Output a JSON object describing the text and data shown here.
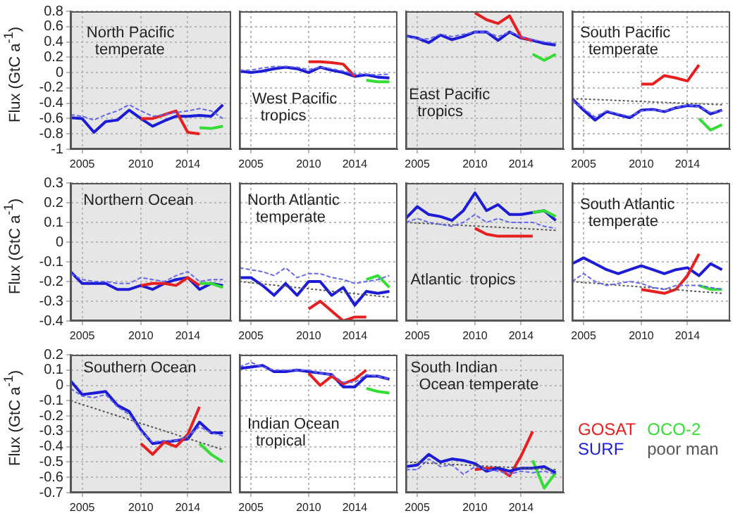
{
  "chart_data": [
    {
      "type": "line",
      "title": "North Pacific temperate",
      "ylabel": "Flux (GtC a$^{-1}$)",
      "x": [
        2004,
        2005,
        2006,
        2007,
        2008,
        2009,
        2010,
        2011,
        2012,
        2013,
        2014,
        2015,
        2016,
        2017
      ],
      "xlim": [
        2004,
        2017.7
      ],
      "xticks": [
        2005,
        2010,
        2014
      ],
      "ylim": [
        -1,
        0.8
      ],
      "yticks": [
        -1,
        -0.8,
        -0.6,
        -0.4,
        -0.2,
        0,
        0.2,
        0.4,
        0.6,
        0.8
      ],
      "grid": true,
      "marker": "none",
      "bands": [
        {
          "axis": "x",
          "from": 2004,
          "to": 2017.7,
          "color": "#e6e6e6"
        }
      ],
      "series": [
        {
          "color": "#6666ee",
          "line_style": "dashed",
          "values": [
            -0.55,
            -0.57,
            -0.62,
            -0.55,
            -0.5,
            -0.42,
            -0.5,
            -0.57,
            -0.55,
            -0.52,
            -0.5,
            -0.47,
            -0.5,
            -0.6
          ]
        },
        {
          "color": "#1c1cd6",
          "values": [
            -0.59,
            -0.6,
            -0.78,
            -0.64,
            -0.62,
            -0.49,
            -0.6,
            -0.7,
            -0.63,
            -0.57,
            -0.57,
            -0.56,
            -0.57,
            -0.42
          ]
        },
        {
          "color": "#e62020",
          "x": [
            2010,
            2011,
            2012,
            2013,
            2014,
            2015
          ],
          "values": [
            -0.6,
            -0.6,
            -0.55,
            -0.5,
            -0.78,
            -0.8
          ]
        },
        {
          "color": "#33dd33",
          "x": [
            2015,
            2016,
            2017
          ],
          "values": [
            -0.72,
            -0.73,
            -0.7
          ]
        }
      ]
    },
    {
      "type": "line",
      "title": "West Pacific tropics",
      "x": [
        2004,
        2005,
        2006,
        2007,
        2008,
        2009,
        2010,
        2011,
        2012,
        2013,
        2014,
        2015,
        2016,
        2017
      ],
      "xlim": [
        2004,
        2017.7
      ],
      "xticks": [
        2005,
        2010,
        2014
      ],
      "ylim": [
        -1,
        0.8
      ],
      "yticks": [
        -1,
        -0.8,
        -0.6,
        -0.4,
        -0.2,
        0,
        0.2,
        0.4,
        0.6,
        0.8
      ],
      "grid": true,
      "tick_labels": "x",
      "marker": "none",
      "series": [
        {
          "color": "#6666ee",
          "line_style": "dashed",
          "values": [
            0.03,
            0.03,
            0.06,
            0.08,
            0.08,
            0.07,
            0.04,
            0.07,
            0.05,
            0.02,
            -0.02,
            -0.02,
            -0.03,
            -0.02
          ]
        },
        {
          "color": "#1c1cd6",
          "values": [
            0.02,
            0,
            0.02,
            0.05,
            0.07,
            0.05,
            0,
            0.07,
            0.03,
            0,
            -0.05,
            -0.03,
            -0.06,
            -0.07
          ]
        },
        {
          "color": "#e62020",
          "x": [
            2010,
            2011,
            2012,
            2013,
            2014
          ],
          "values": [
            0.14,
            0.14,
            0.13,
            0.11,
            -0.05
          ]
        },
        {
          "color": "#33dd33",
          "x": [
            2015,
            2016,
            2017
          ],
          "values": [
            -0.1,
            -0.12,
            -0.12
          ]
        }
      ]
    },
    {
      "type": "line",
      "title": "East Pacific tropics",
      "x": [
        2004,
        2005,
        2006,
        2007,
        2008,
        2009,
        2010,
        2011,
        2012,
        2013,
        2014,
        2015,
        2016,
        2017
      ],
      "xlim": [
        2004,
        2017.7
      ],
      "xticks": [
        2005,
        2010,
        2014
      ],
      "ylim": [
        -1,
        0.8
      ],
      "yticks": [
        -1,
        -0.8,
        -0.6,
        -0.4,
        -0.2,
        0,
        0.2,
        0.4,
        0.6,
        0.8
      ],
      "grid": true,
      "tick_labels": "x",
      "marker": "none",
      "bands": [
        {
          "axis": "x",
          "from": 2004,
          "to": 2017.7,
          "color": "#e6e6e6"
        }
      ],
      "series": [
        {
          "color": "#6666ee",
          "line_style": "dashed",
          "values": [
            0.47,
            0.44,
            0.44,
            0.5,
            0.47,
            0.5,
            0.53,
            0.53,
            0.47,
            0.53,
            0.47,
            0.43,
            0.4,
            0.38
          ]
        },
        {
          "color": "#1c1cd6",
          "values": [
            0.48,
            0.45,
            0.39,
            0.49,
            0.43,
            0.47,
            0.53,
            0.53,
            0.42,
            0.53,
            0.45,
            0.42,
            0.38,
            0.36
          ]
        },
        {
          "color": "#e62020",
          "x": [
            2010,
            2011,
            2012,
            2013,
            2014,
            2015
          ],
          "values": [
            0.78,
            0.69,
            0.64,
            0.74,
            0.46,
            0.42
          ]
        },
        {
          "color": "#33dd33",
          "x": [
            2015,
            2016,
            2017
          ],
          "values": [
            0.24,
            0.16,
            0.24
          ]
        }
      ]
    },
    {
      "type": "line",
      "title": "South Pacific temperate",
      "x": [
        2004,
        2005,
        2006,
        2007,
        2008,
        2009,
        2010,
        2011,
        2012,
        2013,
        2014,
        2015,
        2016,
        2017
      ],
      "xlim": [
        2004,
        2017.7
      ],
      "xticks": [
        2005,
        2010,
        2014
      ],
      "ylim": [
        -1,
        0.8
      ],
      "yticks": [
        -1,
        -0.8,
        -0.6,
        -0.4,
        -0.2,
        0,
        0.2,
        0.4,
        0.6,
        0.8
      ],
      "grid": true,
      "tick_labels": "x",
      "marker": "none",
      "series": [
        {
          "color": "#555555",
          "line_style": "dotted",
          "x": [
            2004,
            2017
          ],
          "values": [
            -0.34,
            -0.42
          ]
        },
        {
          "color": "#6666ee",
          "line_style": "dashed",
          "values": [
            -0.36,
            -0.47,
            -0.58,
            -0.5,
            -0.54,
            -0.57,
            -0.5,
            -0.49,
            -0.5,
            -0.46,
            -0.42,
            -0.45,
            -0.52,
            -0.5
          ]
        },
        {
          "color": "#1c1cd6",
          "values": [
            -0.34,
            -0.49,
            -0.62,
            -0.51,
            -0.55,
            -0.59,
            -0.49,
            -0.48,
            -0.51,
            -0.46,
            -0.43,
            -0.44,
            -0.54,
            -0.49
          ]
        },
        {
          "color": "#e62020",
          "x": [
            2010,
            2011,
            2012,
            2013,
            2014,
            2015
          ],
          "values": [
            -0.15,
            -0.15,
            -0.04,
            -0.07,
            -0.11,
            0.1
          ]
        },
        {
          "color": "#33dd33",
          "x": [
            2015,
            2016,
            2017
          ],
          "values": [
            -0.6,
            -0.75,
            -0.68
          ]
        }
      ]
    },
    {
      "type": "line",
      "title": "Northern Ocean",
      "ylabel": "Flux (GtC a$^{-1}$)",
      "x": [
        2004,
        2005,
        2006,
        2007,
        2008,
        2009,
        2010,
        2011,
        2012,
        2013,
        2014,
        2015,
        2016,
        2017
      ],
      "xlim": [
        2004,
        2017.7
      ],
      "xticks": [
        2005,
        2010,
        2014
      ],
      "ylim": [
        -0.4,
        0.3
      ],
      "yticks": [
        -0.4,
        -0.3,
        -0.2,
        -0.1,
        0,
        0.1,
        0.2,
        0.3
      ],
      "grid": true,
      "marker": "none",
      "bands": [
        {
          "axis": "x",
          "from": 2004,
          "to": 2017.7,
          "color": "#e6e6e6"
        }
      ],
      "series": [
        {
          "color": "#6666ee",
          "line_style": "dashed",
          "values": [
            -0.16,
            -0.19,
            -0.2,
            -0.2,
            -0.21,
            -0.21,
            -0.18,
            -0.19,
            -0.2,
            -0.17,
            -0.15,
            -0.2,
            -0.19,
            -0.19
          ]
        },
        {
          "color": "#1c1cd6",
          "values": [
            -0.15,
            -0.21,
            -0.21,
            -0.21,
            -0.24,
            -0.24,
            -0.22,
            -0.24,
            -0.21,
            -0.19,
            -0.18,
            -0.24,
            -0.21,
            -0.22
          ]
        },
        {
          "color": "#e62020",
          "x": [
            2010,
            2011,
            2012,
            2013,
            2014,
            2015
          ],
          "values": [
            -0.22,
            -0.21,
            -0.21,
            -0.22,
            -0.18,
            -0.22
          ]
        },
        {
          "color": "#33dd33",
          "x": [
            2015,
            2016,
            2017
          ],
          "values": [
            -0.21,
            -0.21,
            -0.23
          ]
        }
      ]
    },
    {
      "type": "line",
      "title": "North Atlantic temperate",
      "x": [
        2004,
        2005,
        2006,
        2007,
        2008,
        2009,
        2010,
        2011,
        2012,
        2013,
        2014,
        2015,
        2016,
        2017
      ],
      "xlim": [
        2004,
        2017.7
      ],
      "xticks": [
        2005,
        2010,
        2014
      ],
      "ylim": [
        -0.4,
        0.3
      ],
      "yticks": [
        -0.4,
        -0.3,
        -0.2,
        -0.1,
        0,
        0.1,
        0.2,
        0.3
      ],
      "grid": true,
      "tick_labels": "x",
      "marker": "none",
      "series": [
        {
          "color": "#555555",
          "line_style": "dotted",
          "x": [
            2004,
            2017
          ],
          "values": [
            -0.2,
            -0.28
          ]
        },
        {
          "color": "#6666ee",
          "line_style": "dashed",
          "values": [
            -0.13,
            -0.14,
            -0.15,
            -0.17,
            -0.13,
            -0.18,
            -0.16,
            -0.16,
            -0.18,
            -0.19,
            -0.21,
            -0.2,
            -0.19,
            -0.17
          ]
        },
        {
          "color": "#1c1cd6",
          "values": [
            -0.18,
            -0.18,
            -0.22,
            -0.27,
            -0.21,
            -0.27,
            -0.2,
            -0.2,
            -0.27,
            -0.23,
            -0.32,
            -0.25,
            -0.26,
            -0.25
          ]
        },
        {
          "color": "#e62020",
          "x": [
            2010,
            2011,
            2012,
            2013,
            2014,
            2015
          ],
          "values": [
            -0.34,
            -0.3,
            -0.35,
            -0.4,
            -0.38,
            -0.38
          ]
        },
        {
          "color": "#33dd33",
          "x": [
            2015,
            2016,
            2017
          ],
          "values": [
            -0.19,
            -0.17,
            -0.23
          ]
        }
      ]
    },
    {
      "type": "line",
      "title": "Atlantic  tropics",
      "x": [
        2004,
        2005,
        2006,
        2007,
        2008,
        2009,
        2010,
        2011,
        2012,
        2013,
        2014,
        2015,
        2016,
        2017
      ],
      "xlim": [
        2004,
        2017.7
      ],
      "xticks": [
        2005,
        2010,
        2014
      ],
      "ylim": [
        -0.4,
        0.3
      ],
      "yticks": [
        -0.4,
        -0.3,
        -0.2,
        -0.1,
        0,
        0.1,
        0.2,
        0.3
      ],
      "grid": true,
      "tick_labels": "x",
      "marker": "none",
      "bands": [
        {
          "axis": "x",
          "from": 2004,
          "to": 2017.7,
          "color": "#e6e6e6"
        }
      ],
      "series": [
        {
          "color": "#555555",
          "line_style": "dotted",
          "x": [
            2004,
            2017
          ],
          "values": [
            0.1,
            0.06
          ]
        },
        {
          "color": "#6666ee",
          "line_style": "dashed",
          "values": [
            0.1,
            0.12,
            0.1,
            0.09,
            0.08,
            0.1,
            0.14,
            0.1,
            0.12,
            0.1,
            0.1,
            0.1,
            0.08,
            0.07
          ]
        },
        {
          "color": "#1c1cd6",
          "values": [
            0.12,
            0.18,
            0.14,
            0.13,
            0.11,
            0.16,
            0.25,
            0.16,
            0.19,
            0.14,
            0.14,
            0.15,
            0.16,
            0.11
          ]
        },
        {
          "color": "#e62020",
          "x": [
            2010,
            2011,
            2012,
            2013,
            2014,
            2015
          ],
          "values": [
            0.07,
            0.04,
            0.03,
            0.03,
            0.03,
            0.03
          ]
        },
        {
          "color": "#33dd33",
          "x": [
            2015,
            2016,
            2017
          ],
          "values": [
            0.15,
            0.16,
            0.13
          ]
        }
      ]
    },
    {
      "type": "line",
      "title": "South Atlantic temperate",
      "x": [
        2004,
        2005,
        2006,
        2007,
        2008,
        2009,
        2010,
        2011,
        2012,
        2013,
        2014,
        2015,
        2016,
        2017
      ],
      "xlim": [
        2004,
        2017.7
      ],
      "xticks": [
        2005,
        2010,
        2014
      ],
      "ylim": [
        -0.4,
        0.3
      ],
      "yticks": [
        -0.4,
        -0.3,
        -0.2,
        -0.1,
        0,
        0.1,
        0.2,
        0.3
      ],
      "grid": true,
      "tick_labels": "x",
      "marker": "none",
      "series": [
        {
          "color": "#555555",
          "line_style": "dotted",
          "x": [
            2004,
            2017
          ],
          "values": [
            -0.2,
            -0.26
          ]
        },
        {
          "color": "#6666ee",
          "line_style": "dashed",
          "values": [
            -0.2,
            -0.16,
            -0.2,
            -0.22,
            -0.21,
            -0.2,
            -0.21,
            -0.23,
            -0.24,
            -0.22,
            -0.22,
            -0.22,
            -0.23,
            -0.24
          ]
        },
        {
          "color": "#1c1cd6",
          "values": [
            -0.11,
            -0.08,
            -0.11,
            -0.14,
            -0.16,
            -0.14,
            -0.12,
            -0.14,
            -0.16,
            -0.14,
            -0.13,
            -0.17,
            -0.11,
            -0.14
          ]
        },
        {
          "color": "#e62020",
          "x": [
            2010,
            2011,
            2012,
            2013,
            2014,
            2015
          ],
          "values": [
            -0.24,
            -0.25,
            -0.26,
            -0.24,
            -0.17,
            -0.06
          ]
        },
        {
          "color": "#33dd33",
          "x": [
            2015,
            2016,
            2017
          ],
          "values": [
            -0.22,
            -0.24,
            -0.24
          ]
        }
      ]
    },
    {
      "type": "line",
      "title": "Southern Ocean",
      "ylabel": "Flux (GtC a$^{-1}$)",
      "x": [
        2004,
        2005,
        2006,
        2007,
        2008,
        2009,
        2010,
        2011,
        2012,
        2013,
        2014,
        2015,
        2016,
        2017
      ],
      "xlim": [
        2004,
        2017.7
      ],
      "xticks": [
        2005,
        2010,
        2014
      ],
      "ylim": [
        -0.7,
        0.2
      ],
      "yticks": [
        -0.7,
        -0.6,
        -0.5,
        -0.4,
        -0.3,
        -0.2,
        -0.1,
        0,
        0.1,
        0.2
      ],
      "grid": true,
      "marker": "none",
      "bands": [
        {
          "axis": "x",
          "from": 2004,
          "to": 2017.7,
          "color": "#e6e6e6"
        }
      ],
      "series": [
        {
          "color": "#555555",
          "line_style": "dotted",
          "x": [
            2004,
            2017
          ],
          "values": [
            -0.1,
            -0.42
          ]
        },
        {
          "color": "#6666ee",
          "line_style": "dashed",
          "values": [
            -0.02,
            -0.07,
            -0.08,
            -0.06,
            -0.14,
            -0.19,
            -0.3,
            -0.37,
            -0.36,
            -0.36,
            -0.33,
            -0.27,
            -0.31,
            -0.33
          ]
        },
        {
          "color": "#1c1cd6",
          "values": [
            0.03,
            -0.06,
            -0.05,
            -0.04,
            -0.13,
            -0.17,
            -0.29,
            -0.38,
            -0.37,
            -0.36,
            -0.35,
            -0.24,
            -0.31,
            -0.31
          ]
        },
        {
          "color": "#e62020",
          "x": [
            2010,
            2011,
            2012,
            2013,
            2014,
            2015
          ],
          "values": [
            -0.38,
            -0.45,
            -0.37,
            -0.4,
            -0.32,
            -0.14
          ]
        },
        {
          "color": "#33dd33",
          "x": [
            2015,
            2016,
            2017
          ],
          "values": [
            -0.38,
            -0.45,
            -0.5
          ]
        }
      ]
    },
    {
      "type": "line",
      "title": "Indian Ocean tropical",
      "x": [
        2004,
        2005,
        2006,
        2007,
        2008,
        2009,
        2010,
        2011,
        2012,
        2013,
        2014,
        2015,
        2016,
        2017
      ],
      "xlim": [
        2004,
        2017.7
      ],
      "xticks": [
        2005,
        2010,
        2014
      ],
      "ylim": [
        -0.7,
        0.2
      ],
      "yticks": [
        -0.7,
        -0.6,
        -0.5,
        -0.4,
        -0.3,
        -0.2,
        -0.1,
        0,
        0.1,
        0.2
      ],
      "grid": true,
      "tick_labels": "x",
      "marker": "none",
      "series": [
        {
          "color": "#6666ee",
          "line_style": "dashed",
          "values": [
            0.12,
            0.15,
            0.12,
            0.1,
            0.1,
            0.1,
            0.1,
            0.08,
            0.07,
            0.02,
            0.02,
            0.07,
            0.06,
            0.04
          ]
        },
        {
          "color": "#1c1cd6",
          "values": [
            0.11,
            0.12,
            0.13,
            0.09,
            0.09,
            0.1,
            0.09,
            0.08,
            0.07,
            -0.01,
            -0.01,
            0.06,
            0.06,
            0.04
          ]
        },
        {
          "color": "#e62020",
          "x": [
            2010,
            2011,
            2012,
            2013,
            2014,
            2015
          ],
          "values": [
            0.08,
            0,
            0.06,
            0.01,
            0.04,
            0.1
          ]
        },
        {
          "color": "#33dd33",
          "x": [
            2015,
            2016,
            2017
          ],
          "values": [
            -0.02,
            -0.04,
            -0.05
          ]
        }
      ]
    },
    {
      "type": "line",
      "title": "South Indian Ocean temperate",
      "x": [
        2004,
        2005,
        2006,
        2007,
        2008,
        2009,
        2010,
        2011,
        2012,
        2013,
        2014,
        2015,
        2016,
        2017
      ],
      "xlim": [
        2004,
        2017.7
      ],
      "xticks": [
        2005,
        2010,
        2014
      ],
      "ylim": [
        -0.7,
        0.2
      ],
      "yticks": [
        -0.7,
        -0.6,
        -0.5,
        -0.4,
        -0.3,
        -0.2,
        -0.1,
        0,
        0.1,
        0.2
      ],
      "grid": true,
      "tick_labels": "x",
      "marker": "none",
      "legend": "right",
      "bands": [
        {
          "axis": "x",
          "from": 2004,
          "to": 2017.7,
          "color": "#e6e6e6"
        }
      ],
      "series": [
        {
          "color": "#6666ee",
          "line_style": "dashed",
          "values": [
            -0.55,
            -0.55,
            -0.48,
            -0.53,
            -0.52,
            -0.58,
            -0.53,
            -0.55,
            -0.56,
            -0.58,
            -0.56,
            -0.57,
            -0.56,
            -0.58
          ]
        },
        {
          "name": "GOSAT",
          "color": "#e62020",
          "x": [
            2010,
            2011,
            2012,
            2013,
            2014,
            2015
          ],
          "values": [
            -0.55,
            -0.54,
            -0.54,
            -0.59,
            -0.46,
            -0.3
          ]
        },
        {
          "name": "OCO-2",
          "color": "#33dd33",
          "x": [
            2015,
            2016,
            2017
          ],
          "values": [
            -0.49,
            -0.67,
            -0.57
          ]
        },
        {
          "name": "SURF",
          "color": "#1c1cd6",
          "values": [
            -0.53,
            -0.52,
            -0.45,
            -0.5,
            -0.48,
            -0.49,
            -0.51,
            -0.56,
            -0.54,
            -0.56,
            -0.54,
            -0.54,
            -0.53,
            -0.57
          ]
        },
        {
          "name": "poor man",
          "color": "#555555",
          "line_style": "dotted",
          "x": [
            2004,
            2017
          ],
          "values": [
            -0.5,
            -0.55
          ]
        }
      ]
    }
  ]
}
